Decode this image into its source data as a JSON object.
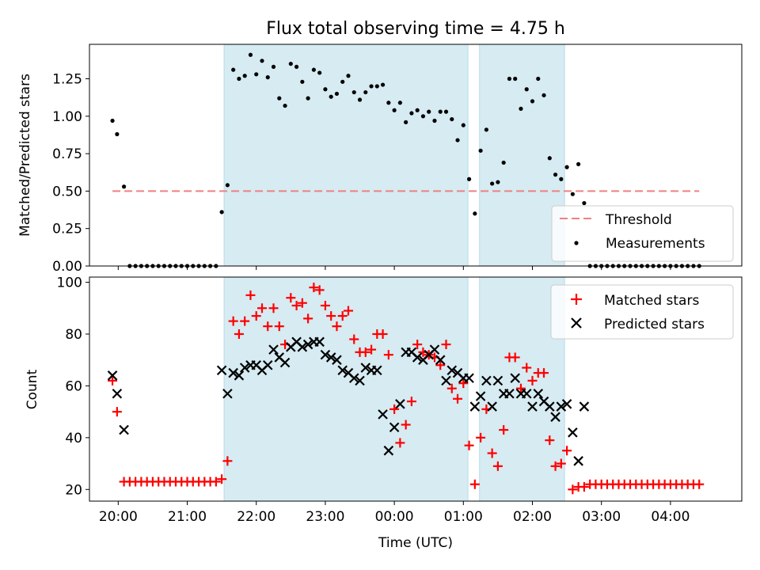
{
  "figure": {
    "title": "Flux total observing time = 4.75 h"
  },
  "chart_data": [
    {
      "type": "scatter",
      "panel": "top",
      "ylabel": "Matched/Predicted stars",
      "xlabel": "",
      "xlim": [
        "19:35",
        "05:02"
      ],
      "ylim": [
        0,
        1.48
      ],
      "yticks": [
        "0.00",
        "0.25",
        "0.50",
        "0.75",
        "1.00",
        "1.25"
      ],
      "ytick_values": [
        0,
        0.25,
        0.5,
        0.75,
        1.0,
        1.25
      ],
      "legend": {
        "placement": "lower right",
        "entries": [
          "Threshold",
          "Measurements"
        ]
      },
      "threshold": {
        "name": "Threshold",
        "value": 0.5,
        "x_range": [
          "19:55",
          "04:25"
        ],
        "color": "#f08080",
        "style": "dashed"
      },
      "shaded_intervals": [
        [
          "21:32",
          "01:04"
        ],
        [
          "01:14",
          "02:28"
        ]
      ],
      "series": [
        {
          "name": "Measurements",
          "color": "#000000",
          "x": [
            "19:55",
            "19:59",
            "20:05",
            "20:10",
            "20:15",
            "20:20",
            "20:25",
            "20:30",
            "20:35",
            "20:40",
            "20:45",
            "20:50",
            "20:55",
            "21:00",
            "21:05",
            "21:10",
            "21:15",
            "21:20",
            "21:25",
            "21:30",
            "21:35",
            "21:40",
            "21:45",
            "21:50",
            "21:55",
            "22:00",
            "22:05",
            "22:10",
            "22:15",
            "22:20",
            "22:25",
            "22:30",
            "22:35",
            "22:40",
            "22:45",
            "22:50",
            "22:55",
            "23:00",
            "23:05",
            "23:10",
            "23:15",
            "23:20",
            "23:25",
            "23:30",
            "23:35",
            "23:40",
            "23:45",
            "23:50",
            "23:55",
            "00:00",
            "00:05",
            "00:10",
            "00:15",
            "00:20",
            "00:25",
            "00:30",
            "00:35",
            "00:40",
            "00:45",
            "00:50",
            "00:55",
            "01:00",
            "01:05",
            "01:10",
            "01:15",
            "01:20",
            "01:25",
            "01:30",
            "01:35",
            "01:40",
            "01:45",
            "01:50",
            "01:55",
            "02:00",
            "02:05",
            "02:10",
            "02:15",
            "02:20",
            "02:25",
            "02:30",
            "02:35",
            "02:40",
            "02:45",
            "02:50",
            "02:55",
            "03:00",
            "03:05",
            "03:10",
            "03:15",
            "03:20",
            "03:25",
            "03:30",
            "03:35",
            "03:40",
            "03:45",
            "03:50",
            "03:55",
            "04:00",
            "04:05",
            "04:10",
            "04:15",
            "04:20",
            "04:25"
          ],
          "values": [
            0.97,
            0.88,
            0.53,
            0,
            0,
            0,
            0,
            0,
            0,
            0,
            0,
            0,
            0,
            0,
            0,
            0,
            0,
            0,
            0,
            0.36,
            0.54,
            1.31,
            1.25,
            1.27,
            1.41,
            1.28,
            1.37,
            1.26,
            1.33,
            1.12,
            1.07,
            1.35,
            1.33,
            1.23,
            1.12,
            1.31,
            1.29,
            1.18,
            1.13,
            1.15,
            1.23,
            1.27,
            1.16,
            1.11,
            1.16,
            1.2,
            1.2,
            1.21,
            1.09,
            1.04,
            1.09,
            0.96,
            1.02,
            1.04,
            1.0,
            1.03,
            0.97,
            1.03,
            1.03,
            0.98,
            0.84,
            0.94,
            0.58,
            0.35,
            0.77,
            0.91,
            0.55,
            0.56,
            0.69,
            1.25,
            1.25,
            1.05,
            1.18,
            1.1,
            1.25,
            1.14,
            0.72,
            0.61,
            0.58,
            0.66,
            0.48,
            0.68,
            0.42,
            0,
            0,
            0,
            0,
            0,
            0,
            0,
            0,
            0,
            0,
            0,
            0,
            0,
            0,
            0,
            0,
            0,
            0,
            0,
            0
          ]
        }
      ]
    },
    {
      "type": "scatter",
      "panel": "bottom",
      "ylabel": "Count",
      "xlabel": "Time (UTC)",
      "xlim": [
        "19:35",
        "05:02"
      ],
      "ylim": [
        15.5,
        102
      ],
      "yticks": [
        "20",
        "40",
        "60",
        "80",
        "100"
      ],
      "ytick_values": [
        20,
        40,
        60,
        80,
        100
      ],
      "xticks": [
        "20:00",
        "21:00",
        "22:00",
        "23:00",
        "00:00",
        "01:00",
        "02:00",
        "03:00",
        "04:00"
      ],
      "legend": {
        "placement": "upper right",
        "entries": [
          "Matched stars",
          "Predicted stars"
        ]
      },
      "shaded_intervals": [
        [
          "21:32",
          "01:04"
        ],
        [
          "01:14",
          "02:28"
        ]
      ],
      "series": [
        {
          "name": "Matched stars",
          "marker": "plus",
          "color": "#ff0000",
          "x": [
            "19:55",
            "19:59",
            "20:05",
            "20:10",
            "20:15",
            "20:20",
            "20:25",
            "20:30",
            "20:35",
            "20:40",
            "20:45",
            "20:50",
            "20:55",
            "21:00",
            "21:05",
            "21:10",
            "21:15",
            "21:20",
            "21:25",
            "21:30",
            "21:35",
            "21:40",
            "21:45",
            "21:50",
            "21:55",
            "22:00",
            "22:05",
            "22:10",
            "22:15",
            "22:20",
            "22:25",
            "22:30",
            "22:35",
            "22:40",
            "22:45",
            "22:50",
            "22:55",
            "23:00",
            "23:05",
            "23:10",
            "23:15",
            "23:20",
            "23:25",
            "23:30",
            "23:35",
            "23:40",
            "23:45",
            "23:50",
            "23:55",
            "00:00",
            "00:05",
            "00:10",
            "00:15",
            "00:20",
            "00:25",
            "00:30",
            "00:35",
            "00:40",
            "00:45",
            "00:50",
            "00:55",
            "01:00",
            "01:05",
            "01:10",
            "01:15",
            "01:20",
            "01:25",
            "01:30",
            "01:35",
            "01:40",
            "01:45",
            "01:50",
            "01:55",
            "02:00",
            "02:05",
            "02:10",
            "02:15",
            "02:20",
            "02:25",
            "02:30",
            "02:35",
            "02:40",
            "02:45",
            "02:50",
            "02:55",
            "03:00",
            "03:05",
            "03:10",
            "03:15",
            "03:20",
            "03:25",
            "03:30",
            "03:35",
            "03:40",
            "03:45",
            "03:50",
            "03:55",
            "04:00",
            "04:05",
            "04:10",
            "04:15",
            "04:20",
            "04:25"
          ],
          "values": [
            62,
            50,
            23,
            23,
            23,
            23,
            23,
            23,
            23,
            23,
            23,
            23,
            23,
            23,
            23,
            23,
            23,
            23,
            23,
            24,
            31,
            85,
            80,
            85,
            95,
            87,
            90,
            83,
            90,
            83,
            76,
            94,
            91,
            92,
            86,
            98,
            97,
            91,
            87,
            83,
            87,
            89,
            78,
            73,
            73,
            74,
            80,
            80,
            72,
            51,
            38,
            45,
            54,
            76,
            73,
            72,
            71,
            68,
            76,
            59,
            55,
            61,
            37,
            22,
            40,
            51,
            34,
            29,
            43,
            71,
            71,
            59,
            67,
            62,
            65,
            65,
            39,
            29,
            30,
            35,
            20,
            21,
            21,
            22,
            22,
            22,
            22,
            22,
            22,
            22,
            22,
            22,
            22,
            22,
            22,
            22,
            22,
            22,
            22,
            22,
            22,
            22,
            22
          ]
        },
        {
          "name": "Predicted stars",
          "marker": "x",
          "color": "#000000",
          "x": [
            "19:55",
            "19:59",
            "20:05",
            "21:30",
            "21:35",
            "21:40",
            "21:45",
            "21:50",
            "21:55",
            "22:00",
            "22:05",
            "22:10",
            "22:15",
            "22:20",
            "22:25",
            "22:30",
            "22:35",
            "22:40",
            "22:45",
            "22:50",
            "22:55",
            "23:00",
            "23:05",
            "23:10",
            "23:15",
            "23:20",
            "23:25",
            "23:30",
            "23:35",
            "23:40",
            "23:45",
            "23:50",
            "23:55",
            "00:00",
            "00:05",
            "00:10",
            "00:15",
            "00:20",
            "00:25",
            "00:30",
            "00:35",
            "00:40",
            "00:45",
            "00:50",
            "00:55",
            "01:00",
            "01:05",
            "01:10",
            "01:15",
            "01:20",
            "01:25",
            "01:30",
            "01:35",
            "01:40",
            "01:45",
            "01:50",
            "01:55",
            "02:00",
            "02:05",
            "02:10",
            "02:15",
            "02:20",
            "02:25",
            "02:30",
            "02:35",
            "02:40",
            "02:45"
          ],
          "values": [
            64,
            57,
            43,
            66,
            57,
            65,
            64,
            67,
            68,
            68,
            66,
            68,
            74,
            71,
            69,
            75,
            77,
            75,
            76,
            77,
            77,
            72,
            71,
            70,
            66,
            65,
            63,
            62,
            67,
            66,
            66,
            49,
            35,
            44,
            53,
            73,
            73,
            71,
            70,
            72,
            74,
            70,
            62,
            66,
            65,
            63,
            63,
            52,
            56,
            62,
            52,
            62,
            57,
            57,
            63,
            57,
            57,
            52,
            57,
            54,
            52,
            48,
            52,
            53,
            42,
            31,
            52
          ]
        }
      ]
    }
  ]
}
